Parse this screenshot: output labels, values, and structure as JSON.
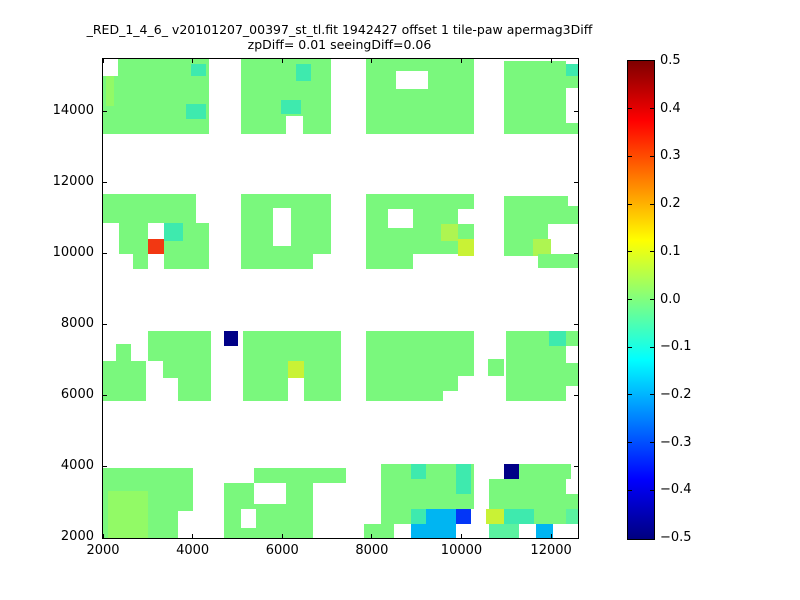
{
  "chart_data": {
    "type": "heatmap",
    "title": "_RED_1_4_6_ v20101207_00397_st_tl.fit 1942427 offset 1 tile-paw apermag3Diff",
    "subtitle": "zpDiff= 0.01 seeingDiff=0.06",
    "xlabel": "",
    "ylabel": "",
    "xlim": [
      2000,
      12600
    ],
    "ylim": [
      2000,
      15490
    ],
    "xticks": [
      2000,
      4000,
      6000,
      8000,
      10000,
      12000
    ],
    "yticks": [
      2000,
      4000,
      6000,
      8000,
      10000,
      12000,
      14000
    ],
    "grid": false,
    "colorbar": {
      "min": -0.5,
      "max": 0.5,
      "colormap": "jet",
      "tick_labels": [
        "0.5",
        "0.4",
        "0.3",
        "0.2",
        "0.1",
        "0.0",
        "−0.1",
        "−0.2",
        "−0.3",
        "−0.4",
        "−0.5"
      ],
      "gradient_top_to_bottom": [
        {
          "color": "#7F0000",
          "pos": 0
        },
        {
          "color": "#FF0000",
          "pos": 12.5
        },
        {
          "color": "#FFFF00",
          "pos": 37.5
        },
        {
          "color": "#00FFFF",
          "pos": 62.5
        },
        {
          "color": "#0000FF",
          "pos": 87.5
        },
        {
          "color": "#00007F",
          "pos": 100
        }
      ]
    },
    "palette": {
      "g": "#7AF87D",
      "g2": "#92FA66",
      "g3": "#5BF2A0",
      "t": "#3EEAAE",
      "yg": "#AEF551",
      "y": "#C9F235",
      "c": "#00B5F2",
      "b": "#0336F7",
      "n": "#000087",
      "r": "#F23812",
      "w": "#FFFFFF"
    },
    "value_map": {
      "g": 0.02,
      "g2": 0.05,
      "g3": -0.04,
      "t": -0.08,
      "yg": 0.09,
      "y": 0.12,
      "c": -0.21,
      "b": -0.34,
      "n": -0.46,
      "r": 0.43,
      "w": null
    },
    "cells": [
      [
        2335,
        15015,
        2031,
        475,
        "g"
      ],
      [
        2000,
        13380,
        2366,
        1635,
        "g"
      ],
      [
        2070,
        14170,
        180,
        845,
        "g2"
      ],
      [
        3960,
        15015,
        340,
        338,
        "t"
      ],
      [
        3853,
        13803,
        447,
        427,
        "t"
      ],
      [
        5080,
        13380,
        2009,
        2110,
        "g"
      ],
      [
        6300,
        14870,
        340,
        479,
        "t"
      ],
      [
        5970,
        13940,
        450,
        390,
        "t"
      ],
      [
        6084,
        13380,
        380,
        510,
        "w"
      ],
      [
        7870,
        13380,
        2410,
        2110,
        "g"
      ],
      [
        8540,
        14650,
        713,
        507,
        "w"
      ],
      [
        10950,
        13380,
        1382,
        2057,
        "g"
      ],
      [
        12330,
        15015,
        270,
        338,
        "t"
      ],
      [
        12330,
        14680,
        270,
        335,
        "g"
      ],
      [
        11660,
        13380,
        940,
        310,
        "g"
      ],
      [
        2000,
        10870,
        2076,
        820,
        "g"
      ],
      [
        2357,
        10000,
        2009,
        873,
        "g"
      ],
      [
        2670,
        9578,
        1696,
        422,
        "g"
      ],
      [
        3004,
        9578,
        357,
        1295,
        "w"
      ],
      [
        3361,
        10366,
        425,
        507,
        "t"
      ],
      [
        3004,
        10000,
        357,
        423,
        "r"
      ],
      [
        5080,
        10000,
        2009,
        1690,
        "g"
      ],
      [
        5080,
        9578,
        1607,
        422,
        "g"
      ],
      [
        5794,
        10225,
        402,
        1071,
        "w"
      ],
      [
        7870,
        10000,
        2410,
        1690,
        "g"
      ],
      [
        7870,
        9578,
        1049,
        422,
        "g"
      ],
      [
        8361,
        10733,
        558,
        535,
        "w"
      ],
      [
        9923,
        10845,
        357,
        423,
        "w"
      ],
      [
        9544,
        10366,
        379,
        479,
        "yg"
      ],
      [
        9923,
        9944,
        357,
        479,
        "y"
      ],
      [
        10950,
        9944,
        980,
        1690,
        "g"
      ],
      [
        11930,
        10845,
        670,
        505,
        "g"
      ],
      [
        11930,
        11350,
        450,
        284,
        "g"
      ],
      [
        11596,
        9944,
        401,
        479,
        "yg"
      ],
      [
        11707,
        9606,
        893,
        394,
        "g"
      ],
      [
        2290,
        6986,
        335,
        479,
        "g"
      ],
      [
        2000,
        5860,
        960,
        1126,
        "g"
      ],
      [
        3004,
        6986,
        1406,
        845,
        "g"
      ],
      [
        3339,
        6507,
        1071,
        479,
        "g"
      ],
      [
        3674,
        5860,
        736,
        647,
        "g"
      ],
      [
        4701,
        7409,
        312,
        422,
        "n"
      ],
      [
        5125,
        5860,
        2187,
        1971,
        "g"
      ],
      [
        6129,
        6507,
        357,
        479,
        "y"
      ],
      [
        6129,
        5860,
        357,
        647,
        "w"
      ],
      [
        7870,
        6563,
        2410,
        1268,
        "g"
      ],
      [
        7870,
        6141,
        2053,
        422,
        "g"
      ],
      [
        7870,
        5860,
        1718,
        281,
        "g"
      ],
      [
        10592,
        6563,
        357,
        479,
        "g"
      ],
      [
        10994,
        5860,
        1606,
        1971,
        "g"
      ],
      [
        11953,
        7409,
        379,
        422,
        "t"
      ],
      [
        12332,
        6930,
        268,
        479,
        "w"
      ],
      [
        12332,
        5860,
        268,
        422,
        "w"
      ],
      [
        2000,
        2000,
        2009,
        1972,
        "g"
      ],
      [
        2112,
        2000,
        892,
        1324,
        "g2"
      ],
      [
        3674,
        2000,
        335,
        761,
        "w"
      ],
      [
        4701,
        2000,
        1986,
        1549,
        "g"
      ],
      [
        5370,
        3549,
        2054,
        423,
        "g"
      ],
      [
        5080,
        2282,
        335,
        535,
        "w"
      ],
      [
        5370,
        2960,
        714,
        589,
        "w"
      ],
      [
        8205,
        2817,
        2075,
        1267,
        "g"
      ],
      [
        8874,
        3662,
        335,
        422,
        "t"
      ],
      [
        9878,
        3239,
        335,
        845,
        "t"
      ],
      [
        8205,
        2394,
        669,
        423,
        "g"
      ],
      [
        8874,
        2394,
        335,
        423,
        "t"
      ],
      [
        9209,
        2394,
        669,
        423,
        "c"
      ],
      [
        9878,
        2394,
        335,
        423,
        "b"
      ],
      [
        7825,
        2000,
        670,
        394,
        "g"
      ],
      [
        8874,
        2000,
        1004,
        394,
        "c"
      ],
      [
        10949,
        3662,
        335,
        422,
        "n"
      ],
      [
        11284,
        3662,
        1160,
        422,
        "g"
      ],
      [
        10615,
        2817,
        1717,
        845,
        "g"
      ],
      [
        12332,
        2817,
        268,
        422,
        "g"
      ],
      [
        10548,
        2394,
        401,
        423,
        "y"
      ],
      [
        10949,
        2394,
        669,
        423,
        "t"
      ],
      [
        11618,
        2394,
        714,
        423,
        "g"
      ],
      [
        12332,
        2394,
        268,
        423,
        "g3"
      ],
      [
        10615,
        2000,
        669,
        394,
        "g3"
      ],
      [
        11663,
        2000,
        379,
        394,
        "c"
      ]
    ]
  }
}
